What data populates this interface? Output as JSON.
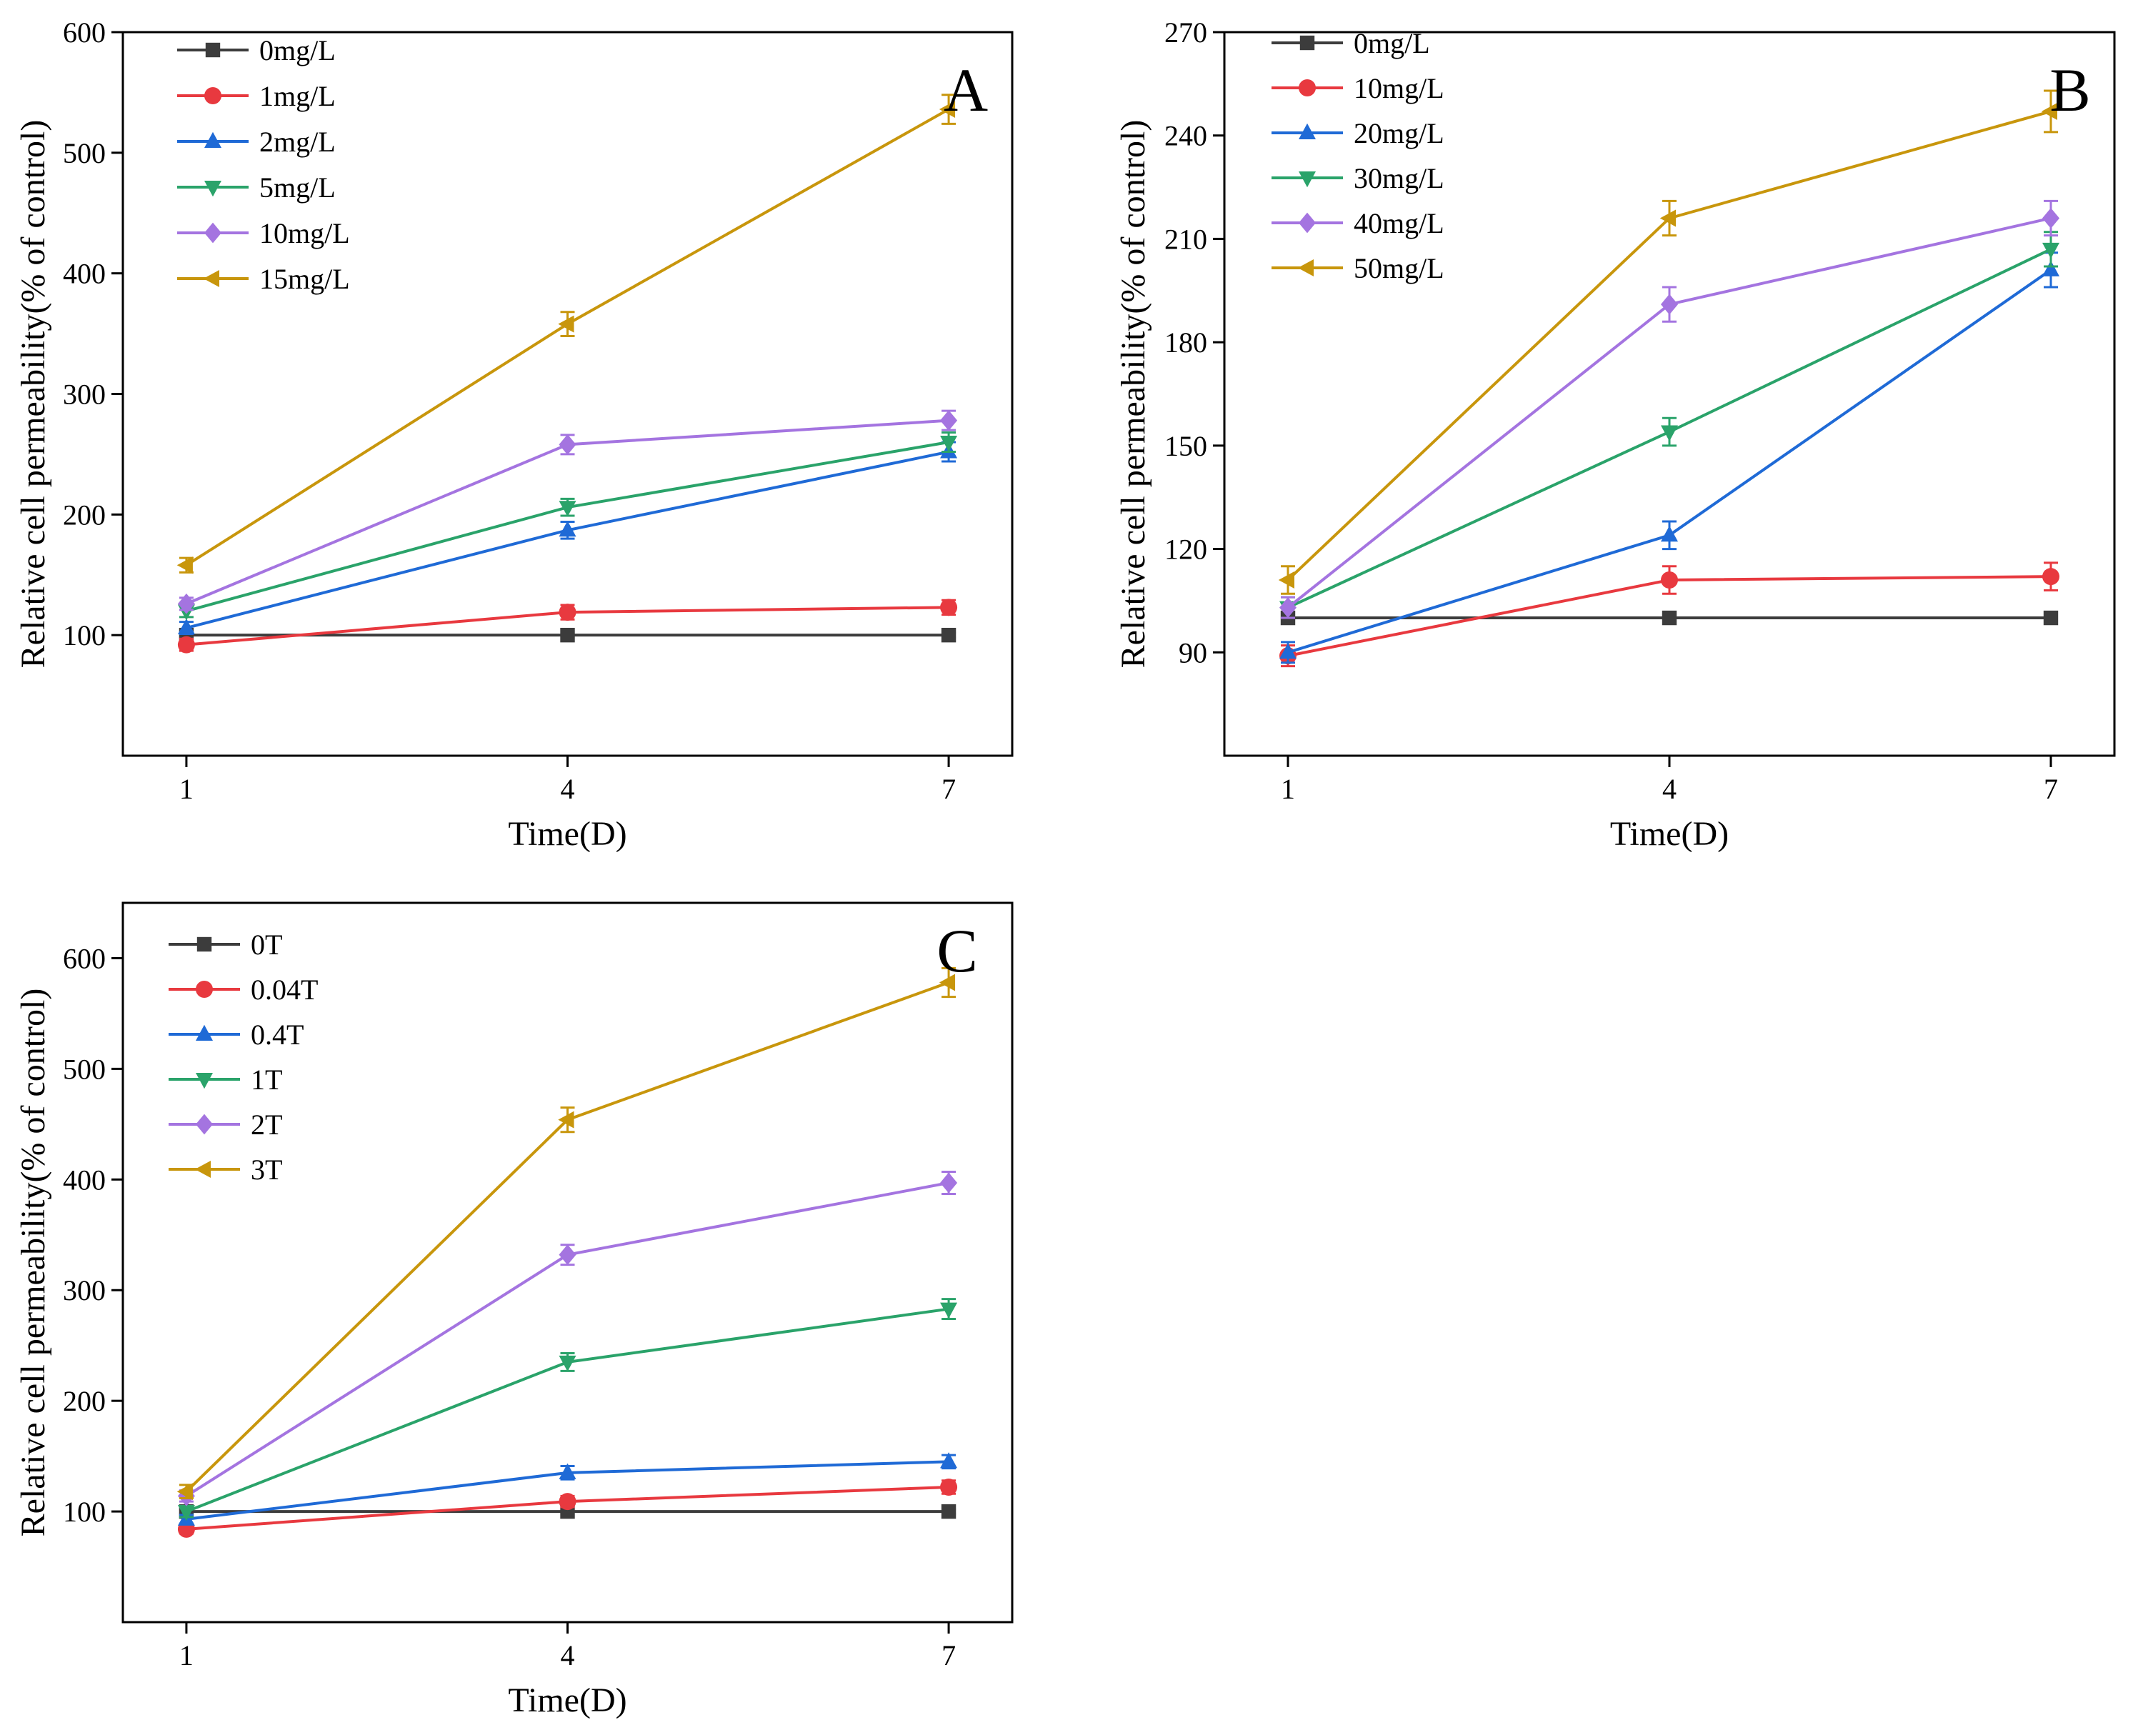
{
  "chart_data": [
    {
      "type": "line",
      "panel_label": "A",
      "xlabel": "Time(D)",
      "ylabel": "Relative cell permeability(% of control)",
      "x": [
        1,
        4,
        7
      ],
      "xticks": [
        "1",
        "4",
        "7"
      ],
      "xlim": [
        0.5,
        7.5
      ],
      "ylim": [
        0,
        600
      ],
      "yticks": [
        100,
        200,
        300,
        400,
        500,
        600
      ],
      "ytick_labels": [
        "100",
        "200",
        "300",
        "400",
        "500",
        "600"
      ],
      "legend_position": "top-left",
      "series": [
        {
          "name": "0mg/L",
          "color": "#3c3c3c",
          "marker": "square",
          "values": [
            100,
            100,
            100
          ],
          "errors": [
            2,
            2,
            2
          ]
        },
        {
          "name": "1mg/L",
          "color": "#e8393f",
          "marker": "circle",
          "values": [
            92,
            119,
            123
          ],
          "errors": [
            5,
            6,
            6
          ]
        },
        {
          "name": "2mg/L",
          "color": "#1f6ad6",
          "marker": "triangle-up",
          "values": [
            106,
            187,
            252
          ],
          "errors": [
            5,
            7,
            8
          ]
        },
        {
          "name": "5mg/L",
          "color": "#2aa36a",
          "marker": "triangle-down",
          "values": [
            120,
            206,
            260
          ],
          "errors": [
            5,
            7,
            8
          ]
        },
        {
          "name": "10mg/L",
          "color": "#a474e0",
          "marker": "diamond",
          "values": [
            126,
            258,
            278
          ],
          "errors": [
            5,
            8,
            8
          ]
        },
        {
          "name": "15mg/L",
          "color": "#c8960c",
          "marker": "triangle-left",
          "values": [
            158,
            358,
            536
          ],
          "errors": [
            6,
            10,
            12
          ]
        }
      ]
    },
    {
      "type": "line",
      "panel_label": "B",
      "xlabel": "Time(D)",
      "ylabel": "Relative cell permeability(% of control)",
      "x": [
        1,
        4,
        7
      ],
      "xticks": [
        "1",
        "4",
        "7"
      ],
      "xlim": [
        0.5,
        7.5
      ],
      "ylim": [
        60,
        270
      ],
      "yticks": [
        90,
        120,
        150,
        180,
        210,
        240,
        270
      ],
      "ytick_labels": [
        "90",
        "120",
        "150",
        "180",
        "210",
        "240",
        "270"
      ],
      "legend_position": "top-left",
      "series": [
        {
          "name": "0mg/L",
          "color": "#3c3c3c",
          "marker": "square",
          "values": [
            100,
            100,
            100
          ],
          "errors": [
            1,
            1,
            1
          ]
        },
        {
          "name": "10mg/L",
          "color": "#e8393f",
          "marker": "circle",
          "values": [
            89,
            111,
            112
          ],
          "errors": [
            3,
            4,
            4
          ]
        },
        {
          "name": "20mg/L",
          "color": "#1f6ad6",
          "marker": "triangle-up",
          "values": [
            90,
            124,
            201
          ],
          "errors": [
            3,
            4,
            5
          ]
        },
        {
          "name": "30mg/L",
          "color": "#2aa36a",
          "marker": "triangle-down",
          "values": [
            103,
            154,
            207
          ],
          "errors": [
            3,
            4,
            5
          ]
        },
        {
          "name": "40mg/L",
          "color": "#a474e0",
          "marker": "diamond",
          "values": [
            103,
            191,
            216
          ],
          "errors": [
            3,
            5,
            5
          ]
        },
        {
          "name": "50mg/L",
          "color": "#c8960c",
          "marker": "triangle-left",
          "values": [
            111,
            216,
            247
          ],
          "errors": [
            4,
            5,
            6
          ]
        }
      ]
    },
    {
      "type": "line",
      "panel_label": "C",
      "xlabel": "Time(D)",
      "ylabel": "Relative cell permeability(% of control)",
      "x": [
        1,
        4,
        7
      ],
      "xticks": [
        "1",
        "4",
        "7"
      ],
      "xlim": [
        0.5,
        7.5
      ],
      "ylim": [
        0,
        650
      ],
      "yticks": [
        100,
        200,
        300,
        400,
        500,
        600
      ],
      "ytick_labels": [
        "100",
        "200",
        "300",
        "400",
        "500",
        "600"
      ],
      "legend_position": "top-left",
      "series": [
        {
          "name": "0T",
          "color": "#3c3c3c",
          "marker": "square",
          "values": [
            100,
            100,
            100
          ],
          "errors": [
            2,
            2,
            2
          ]
        },
        {
          "name": "0.04T",
          "color": "#e8393f",
          "marker": "circle",
          "values": [
            84,
            109,
            122
          ],
          "errors": [
            4,
            5,
            6
          ]
        },
        {
          "name": "0.4T",
          "color": "#1f6ad6",
          "marker": "triangle-up",
          "values": [
            93,
            135,
            145
          ],
          "errors": [
            4,
            6,
            6
          ]
        },
        {
          "name": "1T",
          "color": "#2aa36a",
          "marker": "triangle-down",
          "values": [
            100,
            235,
            283
          ],
          "errors": [
            5,
            8,
            9
          ]
        },
        {
          "name": "2T",
          "color": "#a474e0",
          "marker": "diamond",
          "values": [
            114,
            332,
            397
          ],
          "errors": [
            5,
            9,
            10
          ]
        },
        {
          "name": "3T",
          "color": "#c8960c",
          "marker": "triangle-left",
          "values": [
            118,
            454,
            578
          ],
          "errors": [
            6,
            11,
            13
          ]
        }
      ]
    }
  ]
}
